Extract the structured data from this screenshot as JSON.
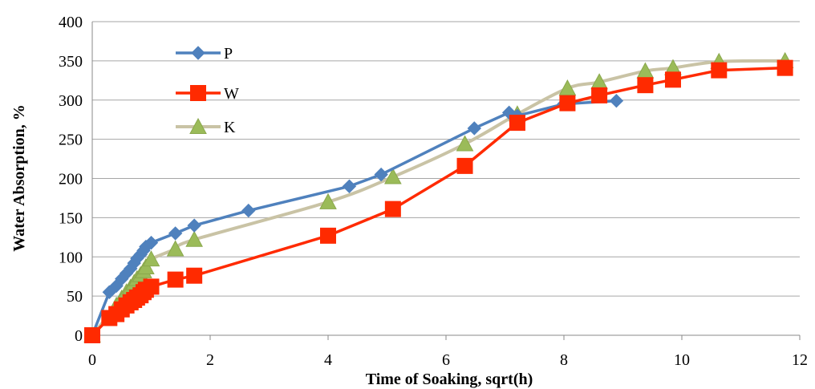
{
  "chart_data": {
    "type": "line",
    "xlabel": "Time of Soaking, sqrt(h)",
    "ylabel": "Water Absorption, %",
    "xlim": [
      0,
      12
    ],
    "ylim": [
      0,
      400
    ],
    "xticks": [
      "0",
      "2",
      "4",
      "6",
      "8",
      "10",
      "12"
    ],
    "yticks": [
      "0",
      "50",
      "100",
      "150",
      "200",
      "250",
      "300",
      "350",
      "400"
    ],
    "grid": "horizontal",
    "legend_position": "top-left",
    "series": [
      {
        "name": "P",
        "color": "#4f81bd",
        "marker": "diamond",
        "smooth": false,
        "x": [
          0,
          0.29,
          0.41,
          0.5,
          0.58,
          0.65,
          0.71,
          0.76,
          0.82,
          0.87,
          0.91,
          1.0,
          1.41,
          1.73,
          2.65,
          4.36,
          4.9,
          6.48,
          7.07,
          7.21,
          8.0,
          8.89
        ],
        "y": [
          0,
          55,
          63,
          72,
          79,
          85,
          92,
          98,
          103,
          108,
          113,
          118,
          130,
          140,
          159,
          190,
          205,
          264,
          284,
          280,
          295,
          299
        ]
      },
      {
        "name": "W",
        "color": "#ff2a00",
        "marker": "square",
        "smooth": false,
        "x": [
          0,
          0.29,
          0.41,
          0.5,
          0.58,
          0.65,
          0.71,
          0.76,
          0.82,
          0.87,
          0.91,
          1.0,
          1.41,
          1.73,
          4.0,
          5.1,
          6.32,
          7.21,
          8.06,
          8.6,
          9.38,
          9.85,
          10.63,
          11.75
        ],
        "y": [
          0,
          22,
          27,
          33,
          38,
          42,
          45,
          48,
          51,
          55,
          58,
          62,
          71,
          76,
          127,
          161,
          216,
          271,
          296,
          306,
          319,
          326,
          338,
          341
        ]
      },
      {
        "name": "K",
        "color": "#c9c3a5",
        "marker": "triangle",
        "smooth": true,
        "x": [
          0,
          0.41,
          0.5,
          0.58,
          0.65,
          0.71,
          0.76,
          0.82,
          0.87,
          0.91,
          1.0,
          1.41,
          1.73,
          4.0,
          5.1,
          6.32,
          7.21,
          8.06,
          8.6,
          9.38,
          9.85,
          10.63,
          11.75
        ],
        "y": [
          0,
          38,
          47,
          55,
          61,
          67,
          72,
          77,
          82,
          87,
          97,
          110,
          122,
          170,
          202,
          244,
          282,
          315,
          323,
          337,
          341,
          349,
          350
        ]
      }
    ]
  }
}
